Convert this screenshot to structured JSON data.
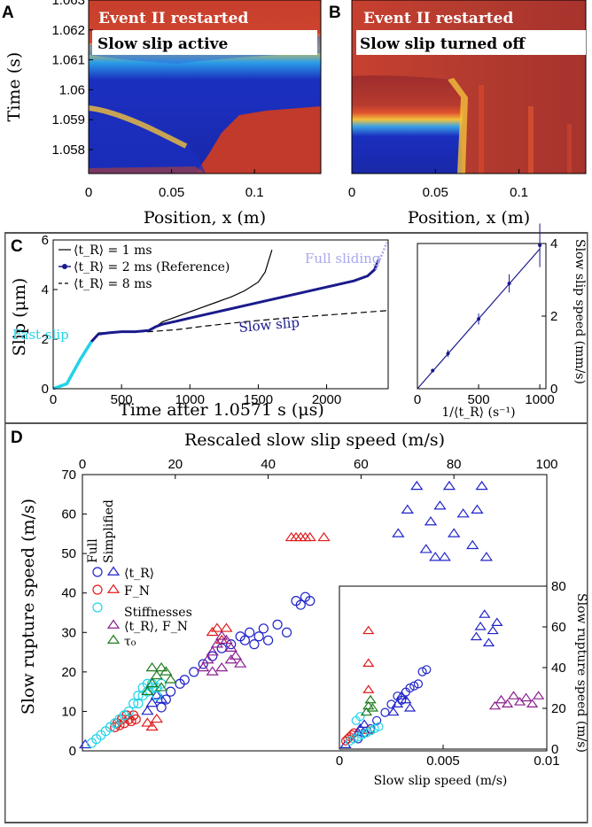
{
  "chart_data": [
    {
      "panel": "A",
      "type": "heatmap",
      "overlay_title": "Event II restarted",
      "overlay_subtitle": "Slow slip active",
      "xlabel": "Position, x (m)",
      "ylabel": "Time (s)",
      "xlim": [
        0,
        0.14
      ],
      "ylim": [
        1.0572,
        1.063
      ],
      "xticks": [
        "0",
        "0.05",
        "0.1"
      ],
      "yticks": [
        "1.063",
        "1.062",
        "1.061",
        "1.06",
        "1.059",
        "1.058"
      ],
      "ytick_values": [
        1.063,
        1.062,
        1.061,
        1.06,
        1.059,
        1.058
      ],
      "xtick_values": [
        0,
        0.05,
        0.1
      ]
    },
    {
      "panel": "B",
      "type": "heatmap",
      "overlay_title": "Event II restarted",
      "overlay_subtitle": "Slow slip turned off",
      "xlabel": "Position, x (m)",
      "xlim": [
        0,
        0.14
      ],
      "ylim": [
        1.0572,
        1.063
      ],
      "xticks": [
        "0",
        "0.05",
        "0.1"
      ],
      "xtick_values": [
        0,
        0.05,
        0.1
      ]
    },
    {
      "panel": "C",
      "type": "line",
      "xlabel": "Time after 1.0571 s (μs)",
      "ylabel": "Slip (μm)",
      "xlim": [
        0,
        2450
      ],
      "ylim": [
        0,
        6
      ],
      "xticks": [
        "0",
        "500",
        "1000",
        "1500",
        "2000"
      ],
      "xtick_values": [
        0,
        500,
        1000,
        1500,
        2000
      ],
      "yticks": [
        "0",
        "2",
        "4",
        "6"
      ],
      "ytick_values": [
        0,
        2,
        4,
        6
      ],
      "legend": [
        "⟨t_R⟩ = 1 ms",
        "⟨t_R⟩ = 2 ms (Reference)",
        "⟨t_R⟩ = 8 ms"
      ],
      "annotations": [
        "Fast slip",
        "Slow slip",
        "Full sliding"
      ],
      "series": [
        {
          "name": "⟨t_R⟩ = 1 ms",
          "style": "solid-black",
          "x": [
            0,
            100,
            200,
            280,
            330,
            400,
            500,
            600,
            700,
            750,
            800,
            900,
            1000,
            1100,
            1200,
            1300,
            1400,
            1500,
            1550,
            1600
          ],
          "y": [
            0,
            0.2,
            1.2,
            1.9,
            2.2,
            2.25,
            2.3,
            2.3,
            2.35,
            2.5,
            2.7,
            2.9,
            3.1,
            3.3,
            3.5,
            3.7,
            3.95,
            4.3,
            4.7,
            5.6
          ]
        },
        {
          "name": "⟨t_R⟩ = 2 ms (Reference)",
          "style": "dots-navy",
          "x": [
            0,
            100,
            200,
            280,
            330,
            400,
            500,
            600,
            700,
            750,
            800,
            900,
            1000,
            1200,
            1400,
            1600,
            1800,
            2000,
            2200,
            2300,
            2350,
            2380
          ],
          "y": [
            0,
            0.2,
            1.2,
            1.9,
            2.2,
            2.25,
            2.3,
            2.3,
            2.35,
            2.5,
            2.6,
            2.72,
            2.85,
            3.1,
            3.35,
            3.6,
            3.85,
            4.1,
            4.35,
            4.55,
            4.8,
            5.2
          ]
        },
        {
          "name": "⟨t_R⟩ = 8 ms",
          "style": "dashed-black",
          "x": [
            330,
            500,
            700,
            900,
            1100,
            1400,
            1700,
            2000,
            2200,
            2440
          ],
          "y": [
            2.25,
            2.28,
            2.3,
            2.38,
            2.52,
            2.7,
            2.85,
            2.97,
            3.05,
            3.15
          ]
        }
      ],
      "fast_slip_x": [
        0,
        280
      ],
      "full_sliding_x": [
        2360,
        2440
      ]
    },
    {
      "panel": "C-inset",
      "type": "line",
      "xlabel": "1/⟨t_R⟩ (s⁻¹)",
      "ylabel": "Slow slip speed (mm/s)",
      "xlim": [
        0,
        1050
      ],
      "ylim": [
        0,
        4
      ],
      "xticks": [
        "0",
        "500",
        "1000"
      ],
      "xtick_values": [
        0,
        500,
        1000
      ],
      "yticks": [
        "0",
        "2",
        "4"
      ],
      "ytick_values": [
        0,
        2,
        4
      ],
      "x": [
        125,
        250,
        500,
        750,
        1000
      ],
      "y": [
        0.5,
        0.97,
        1.92,
        2.9,
        3.95
      ],
      "err": [
        0.05,
        0.1,
        0.15,
        0.25,
        0.6
      ]
    },
    {
      "panel": "D",
      "type": "scatter",
      "xlabel_top": "Rescaled slow slip speed (m/s)",
      "ylabel": "Slow rupture speed (m/s)",
      "xlim": [
        0,
        100
      ],
      "ylim": [
        0,
        70
      ],
      "xticks": [
        "0",
        "20",
        "40",
        "60",
        "80",
        "100"
      ],
      "xtick_values": [
        0,
        20,
        40,
        60,
        80,
        100
      ],
      "yticks": [
        "0",
        "10",
        "20",
        "30",
        "40",
        "50",
        "60",
        "70"
      ],
      "ytick_values": [
        0,
        10,
        20,
        30,
        40,
        50,
        60,
        70
      ],
      "legend_headers": [
        "Full",
        "Simplified"
      ],
      "legend": [
        {
          "label": "⟨t_R⟩",
          "color": "#1f23c8"
        },
        {
          "label": "F_N",
          "color": "#e01b1b"
        },
        {
          "label": "Stiffnesses",
          "color": "#22d3e8"
        },
        {
          "label": "⟨t_R⟩, F_N",
          "color": "#8a1f8f"
        },
        {
          "label": "τ₀",
          "color": "#1f7a1f"
        }
      ],
      "series": [
        {
          "name": "⟨t_R⟩ full",
          "marker": "circle",
          "color": "#1f23c8",
          "x": [
            17,
            18,
            19,
            21,
            22,
            24,
            26,
            28,
            30,
            32,
            34,
            35,
            36,
            37,
            38,
            39,
            40,
            42,
            44,
            46,
            47,
            48,
            49
          ],
          "y": [
            11,
            13,
            15,
            17,
            18,
            20,
            22,
            24,
            26,
            27,
            29,
            28,
            30,
            27,
            29,
            31,
            28,
            32,
            30,
            38,
            37,
            39,
            38
          ]
        },
        {
          "name": "⟨t_R⟩ simplified",
          "marker": "triangle",
          "color": "#1f23c8",
          "x": [
            0.6,
            14,
            15,
            16,
            17,
            68,
            70,
            72,
            74,
            75,
            76,
            77,
            78,
            79,
            80,
            82,
            84,
            85,
            86,
            87
          ],
          "y": [
            1.5,
            10,
            12,
            14,
            13,
            55,
            61,
            67,
            51,
            58,
            49,
            62,
            49,
            67,
            55,
            60,
            52,
            61,
            67,
            49
          ]
        },
        {
          "name": "F_N full",
          "marker": "circle",
          "color": "#e01b1b",
          "x": [
            7,
            7.5,
            8,
            8.5,
            9,
            9.5,
            10,
            10.5,
            11,
            11.5
          ],
          "y": [
            6,
            7,
            6.5,
            8,
            7,
            9,
            8,
            7.5,
            9,
            8
          ]
        },
        {
          "name": "F_N simplified",
          "marker": "triangle",
          "color": "#e01b1b",
          "x": [
            14,
            15,
            16,
            28,
            29,
            30,
            31,
            45,
            46,
            47,
            48,
            49,
            52
          ],
          "y": [
            7,
            6,
            8,
            30,
            31,
            28,
            31,
            54,
            54,
            54,
            54,
            54,
            54
          ]
        },
        {
          "name": "Stiffnesses",
          "marker": "circle",
          "color": "#22d3e8",
          "x": [
            2,
            3,
            4,
            5,
            6,
            7,
            8,
            9,
            10,
            11,
            12,
            13,
            14,
            15,
            16,
            17,
            12,
            13,
            14,
            15,
            16
          ],
          "y": [
            2,
            3,
            4,
            5,
            6,
            7,
            8,
            9,
            10,
            12,
            14,
            16,
            17,
            17,
            16,
            17,
            12,
            14,
            15,
            16,
            14
          ]
        },
        {
          "name": "⟨t_R⟩, F_N",
          "marker": "triangle",
          "color": "#8a1f8f",
          "x": [
            26,
            27,
            28,
            29,
            30,
            31,
            32,
            33,
            34,
            28,
            30,
            32
          ],
          "y": [
            21,
            23,
            25,
            27,
            29,
            28,
            26,
            24,
            22,
            20,
            21,
            23
          ]
        },
        {
          "name": "τ₀",
          "marker": "triangle",
          "color": "#1f7a1f",
          "x": [
            14,
            15,
            16,
            17,
            18,
            19,
            15,
            17
          ],
          "y": [
            15,
            17,
            19,
            21,
            20,
            18,
            21,
            16
          ]
        }
      ]
    },
    {
      "panel": "D-inset",
      "type": "scatter",
      "xlabel": "Slow slip speed (m/s)",
      "ylabel": "Slow rupture speed (m/s)",
      "xlim": [
        0,
        0.01
      ],
      "ylim": [
        0,
        80
      ],
      "xticks": [
        "0",
        "0.005",
        "0.01"
      ],
      "xtick_values": [
        0,
        0.005,
        0.01
      ],
      "yticks": [
        "0",
        "20",
        "40",
        "60",
        "80"
      ],
      "ytick_values": [
        0,
        20,
        40,
        60,
        80
      ],
      "series": [
        {
          "name": "⟨t_R⟩ circles",
          "marker": "circle",
          "color": "#1f23c8",
          "x": [
            0.0009,
            0.0012,
            0.0015,
            0.0018,
            0.0022,
            0.0025,
            0.0028,
            0.003,
            0.0032,
            0.0034,
            0.0036,
            0.0038,
            0.004,
            0.0042
          ],
          "y": [
            5,
            8,
            10,
            14,
            18,
            22,
            26,
            24,
            28,
            30,
            31,
            32,
            38,
            39
          ]
        },
        {
          "name": "⟨t_R⟩ triangles",
          "marker": "triangle",
          "color": "#1f23c8",
          "x": [
            0.0003,
            0.0009,
            0.001,
            0.0012,
            0.0026,
            0.0028,
            0.003,
            0.0032,
            0.0034,
            0.0066,
            0.0068,
            0.007,
            0.0072,
            0.0074,
            0.0076
          ],
          "y": [
            2,
            8,
            10,
            12,
            18,
            22,
            26,
            24,
            20,
            55,
            60,
            66,
            52,
            58,
            62
          ]
        },
        {
          "name": "F_N circles",
          "marker": "circle",
          "color": "#e01b1b",
          "x": [
            0.0003,
            0.0004,
            0.0005,
            0.0006,
            0.0007
          ],
          "y": [
            4,
            5,
            6,
            7,
            8
          ]
        },
        {
          "name": "F_N triangles",
          "marker": "triangle",
          "color": "#e01b1b",
          "x": [
            0.0014,
            0.0014,
            0.0014,
            0.0014
          ],
          "y": [
            9,
            29,
            42,
            58
          ]
        },
        {
          "name": "Stiffnesses",
          "marker": "circle",
          "color": "#22d3e8",
          "x": [
            0.0005,
            0.0007,
            0.0009,
            0.0011,
            0.0013,
            0.0015,
            0.0017,
            0.0019,
            0.0008,
            0.001
          ],
          "y": [
            4,
            5,
            6,
            7,
            8,
            9,
            10,
            11,
            14,
            16
          ]
        },
        {
          "name": "⟨t_R⟩, F_N",
          "marker": "triangle",
          "color": "#8a1f8f",
          "x": [
            0.0075,
            0.0078,
            0.0081,
            0.0084,
            0.0087,
            0.009,
            0.0093,
            0.0096
          ],
          "y": [
            21,
            24,
            22,
            26,
            23,
            25,
            22,
            26
          ]
        },
        {
          "name": "τ₀",
          "marker": "triangle",
          "color": "#1f7a1f",
          "x": [
            0.0013,
            0.0014,
            0.0015,
            0.0016
          ],
          "y": [
            18,
            21,
            24,
            20
          ]
        }
      ]
    }
  ]
}
